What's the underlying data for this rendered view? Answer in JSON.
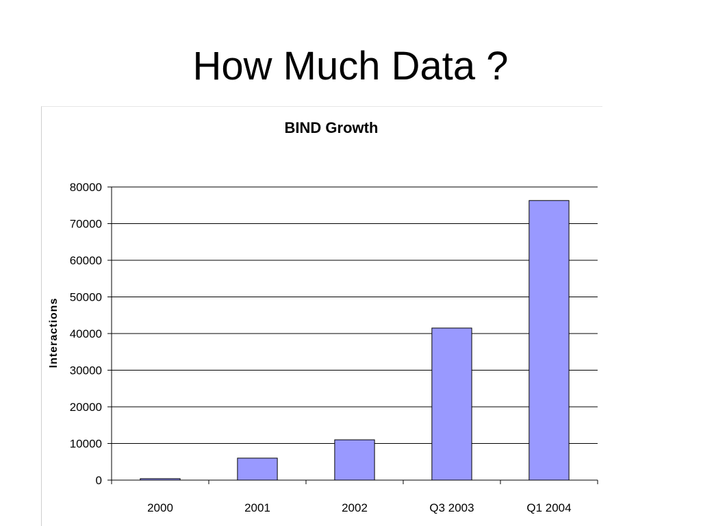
{
  "slide": {
    "title": "How Much Data ?"
  },
  "chart_data": {
    "type": "bar",
    "title": "BIND Growth",
    "xlabel": "",
    "ylabel": "Interactions",
    "categories": [
      "2000",
      "2001",
      "2002",
      "Q3 2003",
      "Q1 2004"
    ],
    "values": [
      400,
      6000,
      11000,
      41500,
      76300
    ],
    "ylim": [
      0,
      80000
    ],
    "yticks": [
      0,
      10000,
      20000,
      30000,
      40000,
      50000,
      60000,
      70000,
      80000
    ],
    "grid": true,
    "legend": "none",
    "colors": {
      "bar_fill": "#9999FF",
      "bar_stroke": "#000000",
      "grid": "#000000"
    }
  }
}
